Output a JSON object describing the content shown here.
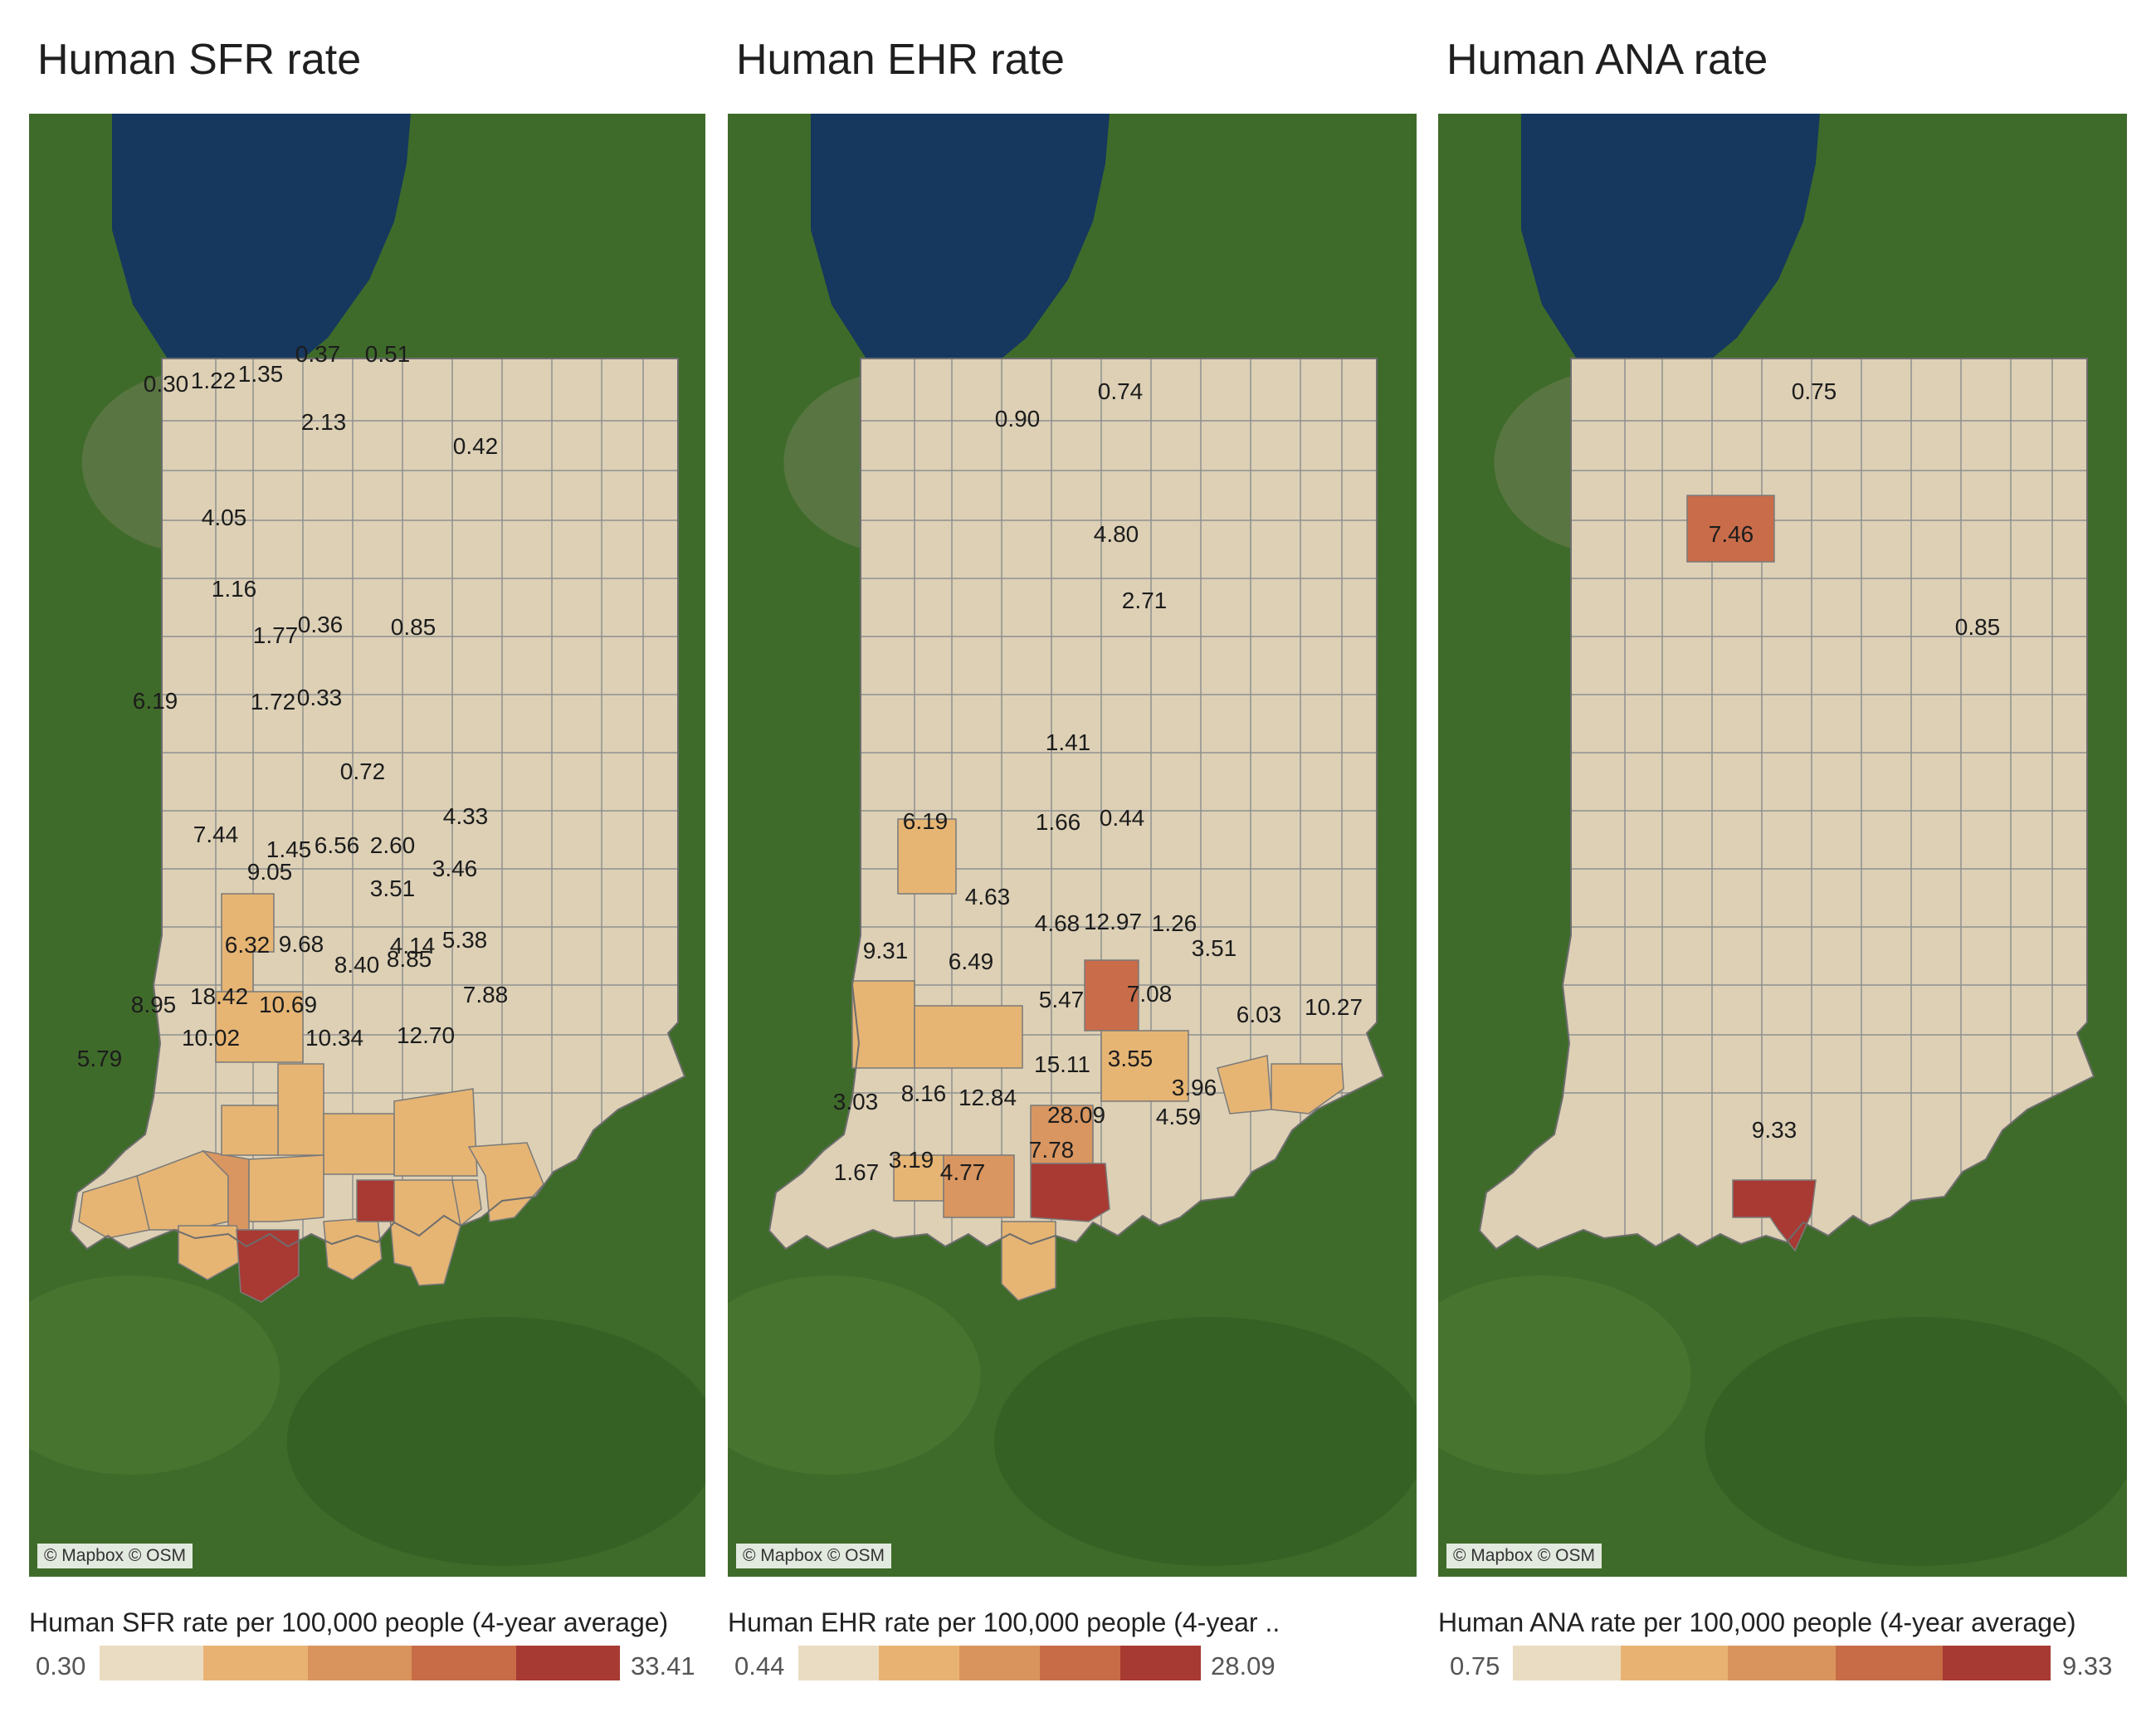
{
  "credit": "© Mapbox © OSM",
  "colors": {
    "base": "#ddd0b5",
    "step1": "#e6b574",
    "step2": "#d99660",
    "step3": "#c96c4a",
    "step4": "#a83a33",
    "lake": "#16375e",
    "land": "#3f6b2a",
    "border": "#8f8f8f"
  },
  "legend_steps": [
    "#eadcc2",
    "#e8b372",
    "#d9945d",
    "#c76c47",
    "#a73a33"
  ],
  "panels": [
    {
      "title": "Human SFR rate",
      "legend_title": "Human SFR rate per 100,000 people (4-year average)",
      "legend_min": "0.30",
      "legend_max": "33.41",
      "labels": [
        "0.30",
        "1.22",
        "1.35",
        "0.37",
        "0.51",
        "2.13",
        "0.42",
        "4.05",
        "1.16",
        "0.85",
        "1.77",
        "0.36",
        "6.19",
        "1.72",
        "0.33",
        "0.72",
        "7.44",
        "4.33",
        "1.45",
        "6.56",
        "2.60",
        "3.46",
        "9.05",
        "3.51",
        "6.32",
        "9.68",
        "4.14",
        "5.38",
        "8.40",
        "8.85",
        "7.88",
        "8.95",
        "18.42",
        "10.69",
        "12.70",
        "10.02",
        "10.34",
        "5.79"
      ]
    },
    {
      "title": "Human EHR rate",
      "legend_title": "Human EHR rate per 100,000 people (4-year ..",
      "legend_min": "0.44",
      "legend_max": "28.09",
      "labels": [
        "0.74",
        "0.90",
        "4.80",
        "2.71",
        "1.41",
        "6.19",
        "1.66",
        "0.44",
        "4.63",
        "4.68",
        "12.97",
        "1.26",
        "9.31",
        "6.49",
        "3.51",
        "5.47",
        "7.08",
        "6.03",
        "10.27",
        "15.11",
        "3.55",
        "3.03",
        "8.16",
        "12.84",
        "3.96",
        "28.09",
        "4.59",
        "1.67",
        "3.19",
        "4.77",
        "7.78"
      ]
    },
    {
      "title": "Human ANA rate",
      "legend_title": "Human ANA rate per 100,000 people (4-year average)",
      "legend_min": "0.75",
      "legend_max": "9.33",
      "labels": [
        "0.75",
        "7.46",
        "0.85",
        "9.33"
      ]
    }
  ]
}
